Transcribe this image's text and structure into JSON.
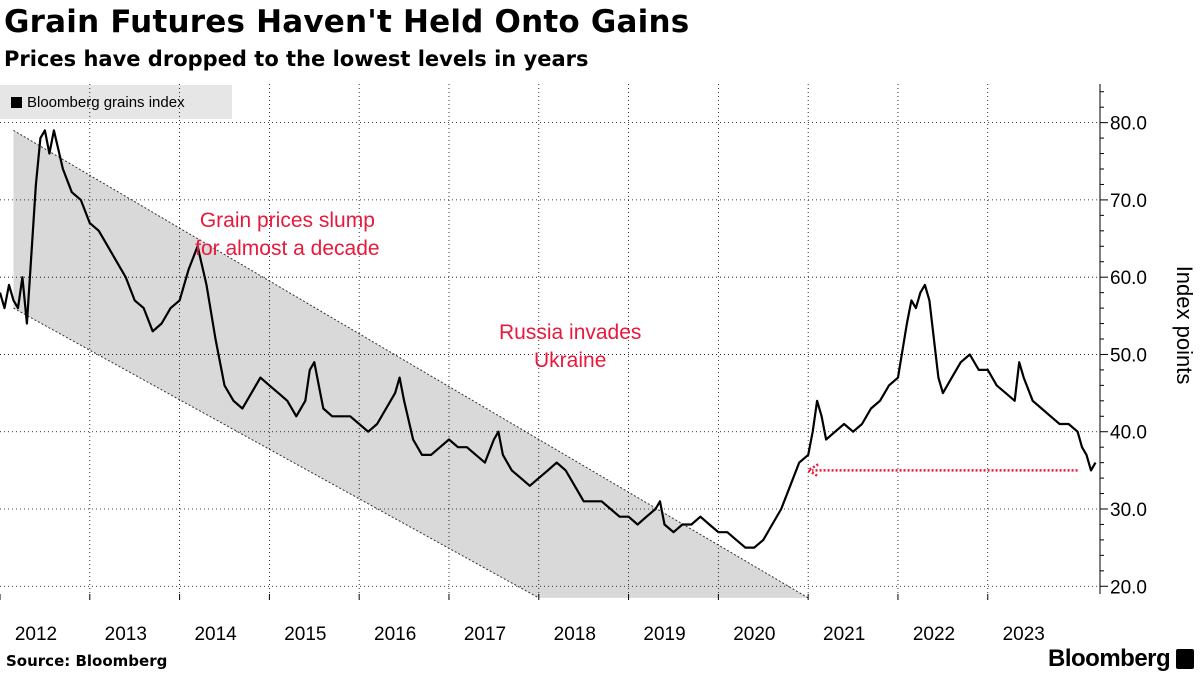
{
  "header": {
    "title": "Grain Futures Haven't Held Onto Gains",
    "subtitle": "Prices have dropped to the lowest levels in years"
  },
  "footer": {
    "source": "Source: Bloomberg",
    "brand": "Bloomberg"
  },
  "colors": {
    "line": "#000000",
    "band_fill": "#d9d9d9",
    "annotation": "#e8193c",
    "legend_bg": "#e6e6e6"
  },
  "chart_data": {
    "type": "line",
    "title": "Grain Futures Haven't Held Onto Gains",
    "subtitle": "Prices have dropped to the lowest levels in years",
    "xlabel": "",
    "ylabel": "Index points",
    "xlim": [
      2012.0,
      2024.25
    ],
    "ylim": [
      19,
      85
    ],
    "x_ticks": [
      2012,
      2013,
      2014,
      2015,
      2016,
      2017,
      2018,
      2019,
      2020,
      2021,
      2022,
      2023
    ],
    "y_ticks": [
      20.0,
      30.0,
      40.0,
      50.0,
      60.0,
      70.0,
      80.0
    ],
    "y_tick_labels": [
      "20.0",
      "30.0",
      "40.0",
      "50.0",
      "60.0",
      "70.0",
      "80.0"
    ],
    "legend": "Bloomberg grains index",
    "legend_position": "top-left",
    "series": [
      {
        "name": "Bloomberg grains index",
        "points": [
          [
            2012.0,
            58
          ],
          [
            2012.05,
            56
          ],
          [
            2012.1,
            59
          ],
          [
            2012.15,
            57
          ],
          [
            2012.2,
            56
          ],
          [
            2012.25,
            60
          ],
          [
            2012.3,
            54
          ],
          [
            2012.35,
            63
          ],
          [
            2012.4,
            72
          ],
          [
            2012.45,
            78
          ],
          [
            2012.5,
            79
          ],
          [
            2012.55,
            76
          ],
          [
            2012.6,
            79
          ],
          [
            2012.7,
            74
          ],
          [
            2012.8,
            71
          ],
          [
            2012.9,
            70
          ],
          [
            2013.0,
            67
          ],
          [
            2013.1,
            66
          ],
          [
            2013.2,
            64
          ],
          [
            2013.3,
            62
          ],
          [
            2013.4,
            60
          ],
          [
            2013.5,
            57
          ],
          [
            2013.6,
            56
          ],
          [
            2013.7,
            53
          ],
          [
            2013.8,
            54
          ],
          [
            2013.9,
            56
          ],
          [
            2014.0,
            57
          ],
          [
            2014.1,
            61
          ],
          [
            2014.2,
            64
          ],
          [
            2014.3,
            59
          ],
          [
            2014.4,
            52
          ],
          [
            2014.5,
            46
          ],
          [
            2014.6,
            44
          ],
          [
            2014.7,
            43
          ],
          [
            2014.8,
            45
          ],
          [
            2014.9,
            47
          ],
          [
            2015.0,
            46
          ],
          [
            2015.1,
            45
          ],
          [
            2015.2,
            44
          ],
          [
            2015.3,
            42
          ],
          [
            2015.4,
            44
          ],
          [
            2015.45,
            48
          ],
          [
            2015.5,
            49
          ],
          [
            2015.55,
            46
          ],
          [
            2015.6,
            43
          ],
          [
            2015.7,
            42
          ],
          [
            2015.8,
            42
          ],
          [
            2015.9,
            42
          ],
          [
            2016.0,
            41
          ],
          [
            2016.1,
            40
          ],
          [
            2016.2,
            41
          ],
          [
            2016.3,
            43
          ],
          [
            2016.4,
            45
          ],
          [
            2016.45,
            47
          ],
          [
            2016.5,
            44
          ],
          [
            2016.6,
            39
          ],
          [
            2016.7,
            37
          ],
          [
            2016.8,
            37
          ],
          [
            2016.9,
            38
          ],
          [
            2017.0,
            39
          ],
          [
            2017.1,
            38
          ],
          [
            2017.2,
            38
          ],
          [
            2017.3,
            37
          ],
          [
            2017.4,
            36
          ],
          [
            2017.5,
            39
          ],
          [
            2017.55,
            40
          ],
          [
            2017.6,
            37
          ],
          [
            2017.7,
            35
          ],
          [
            2017.8,
            34
          ],
          [
            2017.9,
            33
          ],
          [
            2018.0,
            34
          ],
          [
            2018.1,
            35
          ],
          [
            2018.2,
            36
          ],
          [
            2018.3,
            35
          ],
          [
            2018.4,
            33
          ],
          [
            2018.5,
            31
          ],
          [
            2018.6,
            31
          ],
          [
            2018.7,
            31
          ],
          [
            2018.8,
            30
          ],
          [
            2018.9,
            29
          ],
          [
            2019.0,
            29
          ],
          [
            2019.1,
            28
          ],
          [
            2019.2,
            29
          ],
          [
            2019.3,
            30
          ],
          [
            2019.35,
            31
          ],
          [
            2019.4,
            28
          ],
          [
            2019.5,
            27
          ],
          [
            2019.6,
            28
          ],
          [
            2019.7,
            28
          ],
          [
            2019.8,
            29
          ],
          [
            2019.9,
            28
          ],
          [
            2020.0,
            27
          ],
          [
            2020.1,
            27
          ],
          [
            2020.2,
            26
          ],
          [
            2020.3,
            25
          ],
          [
            2020.4,
            25
          ],
          [
            2020.5,
            26
          ],
          [
            2020.6,
            28
          ],
          [
            2020.7,
            30
          ],
          [
            2020.8,
            33
          ],
          [
            2020.9,
            36
          ],
          [
            2021.0,
            37
          ],
          [
            2021.05,
            40
          ],
          [
            2021.1,
            44
          ],
          [
            2021.15,
            42
          ],
          [
            2021.2,
            39
          ],
          [
            2021.3,
            40
          ],
          [
            2021.4,
            41
          ],
          [
            2021.5,
            40
          ],
          [
            2021.6,
            41
          ],
          [
            2021.7,
            43
          ],
          [
            2021.8,
            44
          ],
          [
            2021.9,
            46
          ],
          [
            2022.0,
            47
          ],
          [
            2022.1,
            54
          ],
          [
            2022.15,
            57
          ],
          [
            2022.2,
            56
          ],
          [
            2022.25,
            58
          ],
          [
            2022.3,
            59
          ],
          [
            2022.35,
            57
          ],
          [
            2022.4,
            52
          ],
          [
            2022.45,
            47
          ],
          [
            2022.5,
            45
          ],
          [
            2022.6,
            47
          ],
          [
            2022.7,
            49
          ],
          [
            2022.8,
            50
          ],
          [
            2022.9,
            48
          ],
          [
            2023.0,
            48
          ],
          [
            2023.1,
            46
          ],
          [
            2023.2,
            45
          ],
          [
            2023.3,
            44
          ],
          [
            2023.35,
            49
          ],
          [
            2023.4,
            47
          ],
          [
            2023.5,
            44
          ],
          [
            2023.6,
            43
          ],
          [
            2023.7,
            42
          ],
          [
            2023.8,
            41
          ],
          [
            2023.9,
            41
          ],
          [
            2024.0,
            40
          ],
          [
            2024.05,
            38
          ],
          [
            2024.1,
            37
          ],
          [
            2024.15,
            35
          ],
          [
            2024.2,
            36
          ]
        ]
      }
    ],
    "band": {
      "description": "downward trend channel",
      "upper": [
        [
          2012.15,
          79
        ],
        [
          2021.0,
          18.5
        ]
      ],
      "lower": [
        [
          2012.15,
          56
        ],
        [
          2018.0,
          18.5
        ]
      ]
    },
    "annotations": [
      {
        "text_lines": [
          "Grain prices slump",
          "for almost a decade"
        ],
        "x": 2015.2,
        "y": 66.5
      },
      {
        "text_lines": [
          "Russia invades",
          "Ukraine"
        ],
        "x": 2018.35,
        "y": 52
      }
    ],
    "arrow": {
      "from": [
        2024.0,
        35
      ],
      "to": [
        2021.0,
        35
      ],
      "style": "dotted"
    }
  }
}
